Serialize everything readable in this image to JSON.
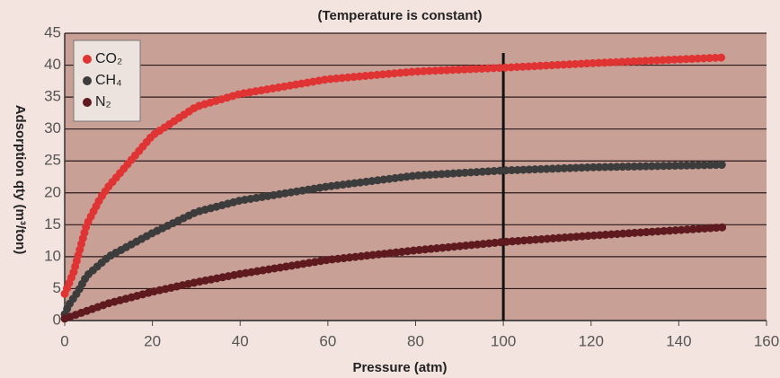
{
  "chart_data": {
    "type": "line",
    "title": "(Temperature is constant)",
    "x_label": "Pressure (atm)",
    "y_label": "Adsorption qty (m³/ton)",
    "xlim": [
      0,
      160
    ],
    "xticks": [
      0,
      20,
      40,
      60,
      80,
      100,
      120,
      140,
      160
    ],
    "ylim": [
      0,
      45
    ],
    "yticks": [
      0,
      5,
      10,
      15,
      20,
      25,
      30,
      35,
      40,
      45
    ],
    "grid": true,
    "legend": "upper left",
    "vline": 100,
    "series": [
      {
        "name": "CO₂",
        "color": "#e03434",
        "x": [
          0,
          2,
          3,
          5,
          8,
          10,
          20,
          30,
          40,
          60,
          80,
          100,
          120,
          150
        ],
        "values": [
          4.2,
          7.5,
          10,
          15,
          19,
          21,
          29,
          33.5,
          35.5,
          37.8,
          39,
          39.6,
          40.3,
          41.2
        ]
      },
      {
        "name": "CH₄",
        "color": "#3c3c3c",
        "x": [
          0,
          1,
          3,
          5,
          10,
          20,
          30,
          40,
          60,
          80,
          100,
          120,
          150
        ],
        "values": [
          1,
          2.5,
          4.5,
          7,
          10,
          13.7,
          17,
          18.8,
          21,
          22.7,
          23.5,
          24,
          24.4
        ]
      },
      {
        "name": "N₂",
        "color": "#5e1a1e",
        "x": [
          0,
          5,
          10,
          20,
          30,
          40,
          60,
          80,
          100,
          120,
          150
        ],
        "values": [
          0.3,
          1.5,
          2.7,
          4.5,
          6,
          7.3,
          9.5,
          11,
          12.3,
          13.3,
          14.6
        ]
      }
    ]
  }
}
